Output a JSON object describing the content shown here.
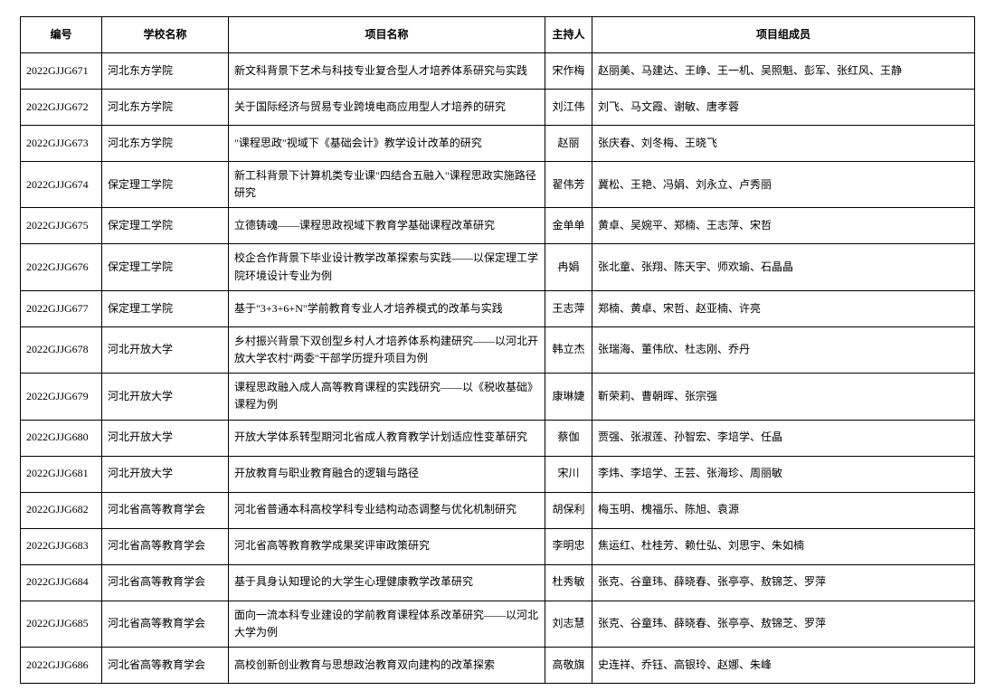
{
  "columns": [
    "编号",
    "学校名称",
    "项目名称",
    "主持人",
    "项目组成员"
  ],
  "rows": [
    [
      "2022GJJG671",
      "河北东方学院",
      "新文科背景下艺术与科技专业复合型人才培养体系研究与实践",
      "宋作梅",
      "赵丽美、马建达、王峥、王一机、吴照魁、彭军、张红风、王静"
    ],
    [
      "2022GJJG672",
      "河北东方学院",
      "关于国际经济与贸易专业跨境电商应用型人才培养的研究",
      "刘江伟",
      "刘飞、马文霞、谢敏、唐孝蓉"
    ],
    [
      "2022GJJG673",
      "河北东方学院",
      "\"课程思政\"视域下《基础会计》教学设计改革的研究",
      "赵丽",
      "张庆春、刘冬梅、王晓飞"
    ],
    [
      "2022GJJG674",
      "保定理工学院",
      "新工科背景下计算机类专业课\"四结合五融入\"课程思政实施路径研究",
      "翟伟芳",
      "冀松、王艳、冯娟、刘永立、卢秀丽"
    ],
    [
      "2022GJJG675",
      "保定理工学院",
      "立德铸魂——课程思政视域下教育学基础课程改革研究",
      "金单单",
      "黄卓、吴婉平、郑楠、王志萍、宋哲"
    ],
    [
      "2022GJJG676",
      "保定理工学院",
      "校企合作背景下毕业设计教学改革探索与实践——以保定理工学院环境设计专业为例",
      "冉娟",
      "张北童、张翔、陈天宇、师欢瑜、石晶晶"
    ],
    [
      "2022GJJG677",
      "保定理工学院",
      "基于\"3+3+6+N\"学前教育专业人才培养模式的改革与实践",
      "王志萍",
      "郑楠、黄卓、宋哲、赵亚楠、许亮"
    ],
    [
      "2022GJJG678",
      "河北开放大学",
      "乡村振兴背景下双创型乡村人才培养体系构建研究——以河北开放大学农村\"两委\"干部学历提升项目为例",
      "韩立杰",
      "张瑞海、董伟欣、杜志刚、乔丹"
    ],
    [
      "2022GJJG679",
      "河北开放大学",
      "课程思政融入成人高等教育课程的实践研究——以《税收基础》课程为例",
      "康琳婕",
      "靳荣莉、曹朝晖、张宗强"
    ],
    [
      "2022GJJG680",
      "河北开放大学",
      "开放大学体系转型期河北省成人教育教学计划适应性变革研究",
      "蔡伽",
      "贾强、张淑莲、孙智宏、李培学、任晶"
    ],
    [
      "2022GJJG681",
      "河北开放大学",
      "开放教育与职业教育融合的逻辑与路径",
      "宋川",
      "李炜、李培学、王芸、张海珍、周丽敏"
    ],
    [
      "2022GJJG682",
      "河北省高等教育学会",
      "河北省普通本科高校学科专业结构动态调整与优化机制研究",
      "胡保利",
      "梅玉明、槐福乐、陈旭、袁源"
    ],
    [
      "2022GJJG683",
      "河北省高等教育学会",
      "河北省高等教育教学成果奖评审政策研究",
      "李明忠",
      "焦运红、杜桂芳、赖仕弘、刘思宇、朱如楠"
    ],
    [
      "2022GJJG684",
      "河北省高等教育学会",
      "基于具身认知理论的大学生心理健康教学改革研究",
      "杜秀敏",
      "张克、谷童玮、薛晓春、张亭亭、敖锦芝、罗萍"
    ],
    [
      "2022GJJG685",
      "河北省高等教育学会",
      "面向一流本科专业建设的学前教育课程体系改革研究——以河北大学为例",
      "刘志慧",
      "张克、谷童玮、薛晓春、张亭亭、敖锦芝、罗萍"
    ],
    [
      "2022GJJG686",
      "河北省高等教育学会",
      "高校创新创业教育与思想政治教育双向建构的改革探索",
      "高敬旗",
      "史连祥、乔钰、高银玲、赵娜、朱峰"
    ]
  ]
}
